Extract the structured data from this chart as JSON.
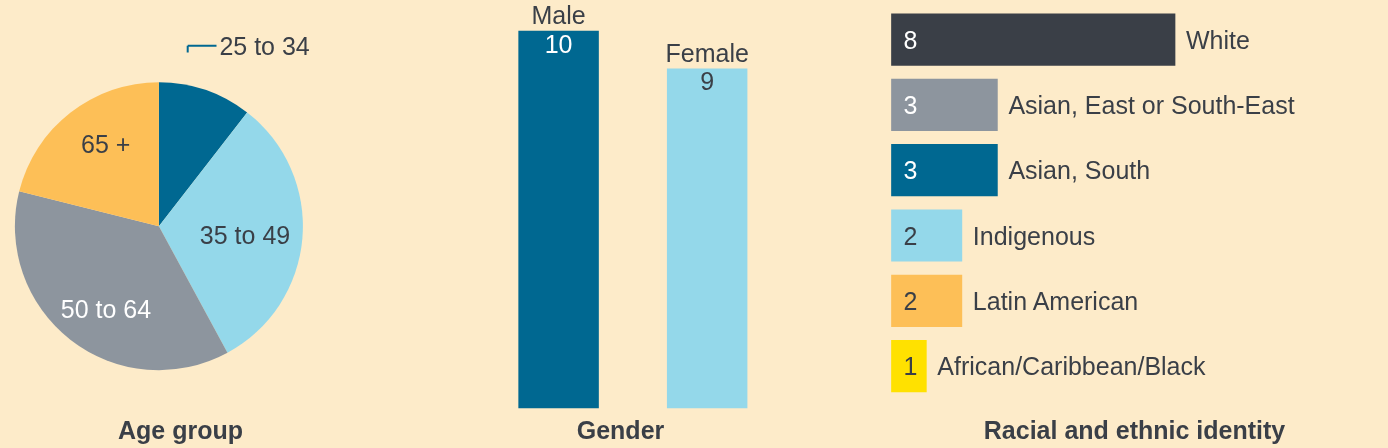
{
  "chart_data": [
    {
      "type": "pie",
      "title": "Age group",
      "categories": [
        "25 to 34",
        "35 to 49",
        "50 to 64",
        "65 +"
      ],
      "values": [
        10.5,
        31.6,
        36.8,
        21.1
      ],
      "colors": [
        "#006891",
        "#94d8ea",
        "#8d959e",
        "#fdbf57"
      ]
    },
    {
      "type": "bar",
      "title": "Gender",
      "categories": [
        "Male",
        "Female"
      ],
      "values": [
        10,
        9
      ],
      "colors": [
        "#006891",
        "#94d8ea"
      ],
      "data_labels": true
    },
    {
      "type": "bar",
      "orientation": "horizontal",
      "title": "Racial and ethnic identity",
      "categories": [
        "White",
        "Asian, East or South-East",
        "Asian, South",
        "Indigenous",
        "Latin American",
        "African/Caribbean/Black"
      ],
      "values": [
        8,
        3,
        3,
        2,
        2,
        1
      ],
      "colors": [
        "#3a3f47",
        "#8d959e",
        "#006891",
        "#94d8ea",
        "#fdbf57",
        "#ffe100"
      ],
      "data_labels": true
    }
  ]
}
